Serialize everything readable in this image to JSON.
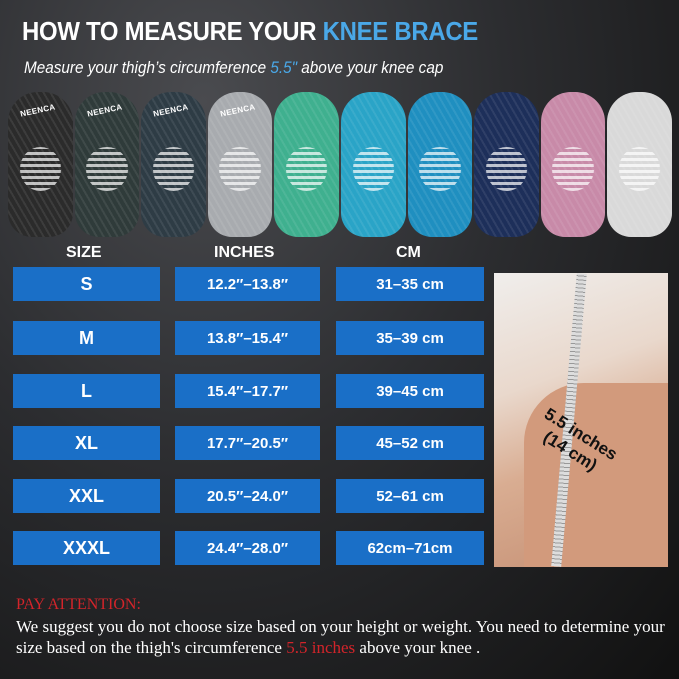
{
  "header": {
    "title_main": "HOW TO MEASURE YOUR ",
    "title_accent": "KNEE BRACE",
    "subtitle_pre": "Measure your thigh’s circumference ",
    "subtitle_accent": "5.5\"",
    "subtitle_post": " above your knee cap",
    "accent_color": "#4aa8e8"
  },
  "braces": [
    {
      "color": "#2b2b2b",
      "brand": "NEENCA"
    },
    {
      "color": "#2f3b3a",
      "brand": "NEENCA"
    },
    {
      "color": "#2e3c45",
      "brand": "NEENCA"
    },
    {
      "color": "#a8abaf",
      "brand": "NEENCA"
    },
    {
      "color": "#3fb08f",
      "brand": ""
    },
    {
      "color": "#2aa4c7",
      "brand": ""
    },
    {
      "color": "#1f8fc0",
      "brand": ""
    },
    {
      "color": "#1d2f5a",
      "brand": ""
    },
    {
      "color": "#c88aa8",
      "brand": ""
    },
    {
      "color": "#d9d9d9",
      "brand": ""
    }
  ],
  "table": {
    "headers": [
      "SIZE",
      "INCHES",
      "CM"
    ],
    "rows": [
      [
        "S",
        "12.2″–13.8″",
        "31–35 cm"
      ],
      [
        "M",
        "13.8″–15.4″",
        "35–39 cm"
      ],
      [
        "L",
        "15.4″–17.7″",
        "39–45 cm"
      ],
      [
        "XL",
        "17.7″–20.5″",
        "45–52 cm"
      ],
      [
        "XXL",
        "20.5″–24.0″",
        "52–61 cm"
      ],
      [
        "XXXL",
        "24.4″–28.0″",
        "62cm–71cm"
      ]
    ],
    "cell_color": "#1a6fc7"
  },
  "photo": {
    "label_line1": "5.5 inches",
    "label_line2": "(14 cm)"
  },
  "notice": {
    "heading": "PAY ATTENTION:",
    "text_pre": "We suggest you do not choose size based on your height or weight. You need to determine your size based on the thigh's circumference ",
    "text_red": "5.5 inches",
    "text_post": " above your knee .",
    "red_color": "#d3242a"
  }
}
